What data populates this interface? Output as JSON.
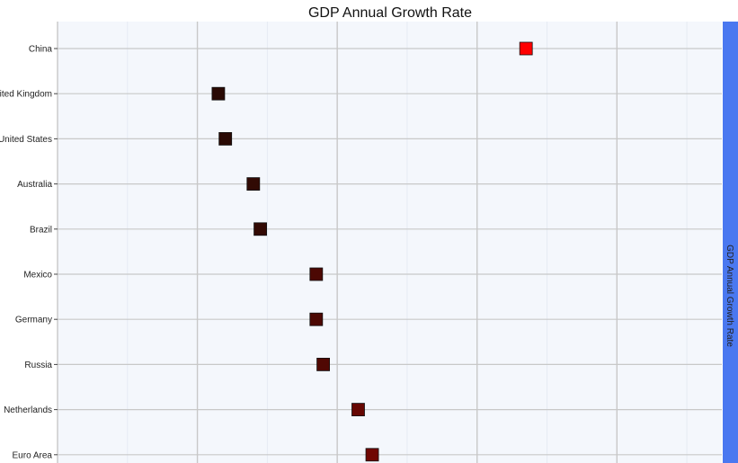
{
  "chart_data": {
    "type": "scatter",
    "title": "GDP Annual Growth Rate",
    "facet_label": "GDP Annual Growth Rate",
    "categories": [
      "China",
      "United Kingdom",
      "United States",
      "Australia",
      "Brazil",
      "Mexico",
      "Germany",
      "Russia",
      "Netherlands",
      "Euro Area"
    ],
    "values": [
      6.7,
      2.3,
      2.4,
      2.8,
      2.9,
      3.7,
      3.7,
      3.8,
      4.3,
      4.5
    ],
    "xlim": [
      0,
      9.5
    ],
    "marker": "square",
    "grid": true,
    "colors": {
      "background": "#f4f7fc",
      "grid": "#c8c8c8",
      "strip": "#4a78f0",
      "low": "#2a0a04",
      "high": "#ff0000"
    }
  }
}
